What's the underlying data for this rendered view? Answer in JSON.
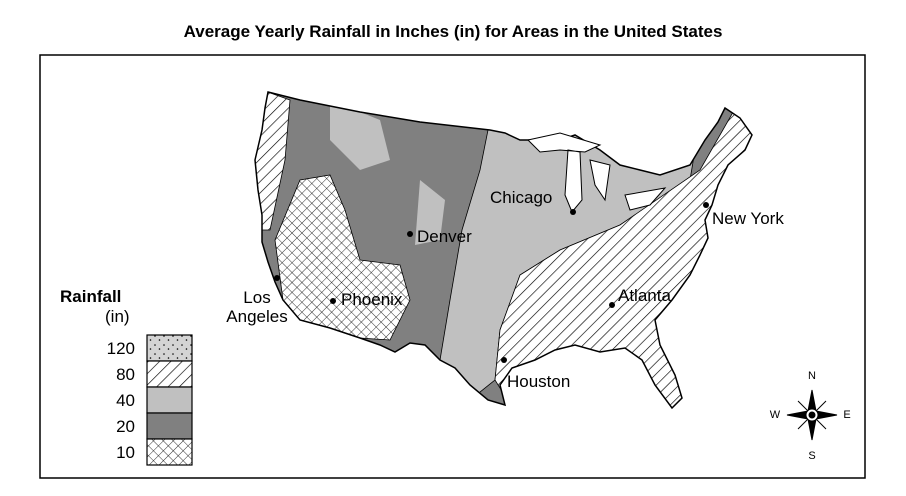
{
  "title": "Average Yearly Rainfall in Inches (in) for Areas in the United States",
  "cities": [
    "Chicago",
    "New York",
    "Denver",
    "Phoenix",
    "Los Angeles",
    "Atlanta",
    "Houston"
  ],
  "legend": {
    "title": "Rainfall",
    "unit": "(in)",
    "items": [
      120,
      80,
      40,
      20,
      10
    ]
  },
  "compass": {
    "n": "N",
    "e": "E",
    "s": "S",
    "w": "W"
  }
}
